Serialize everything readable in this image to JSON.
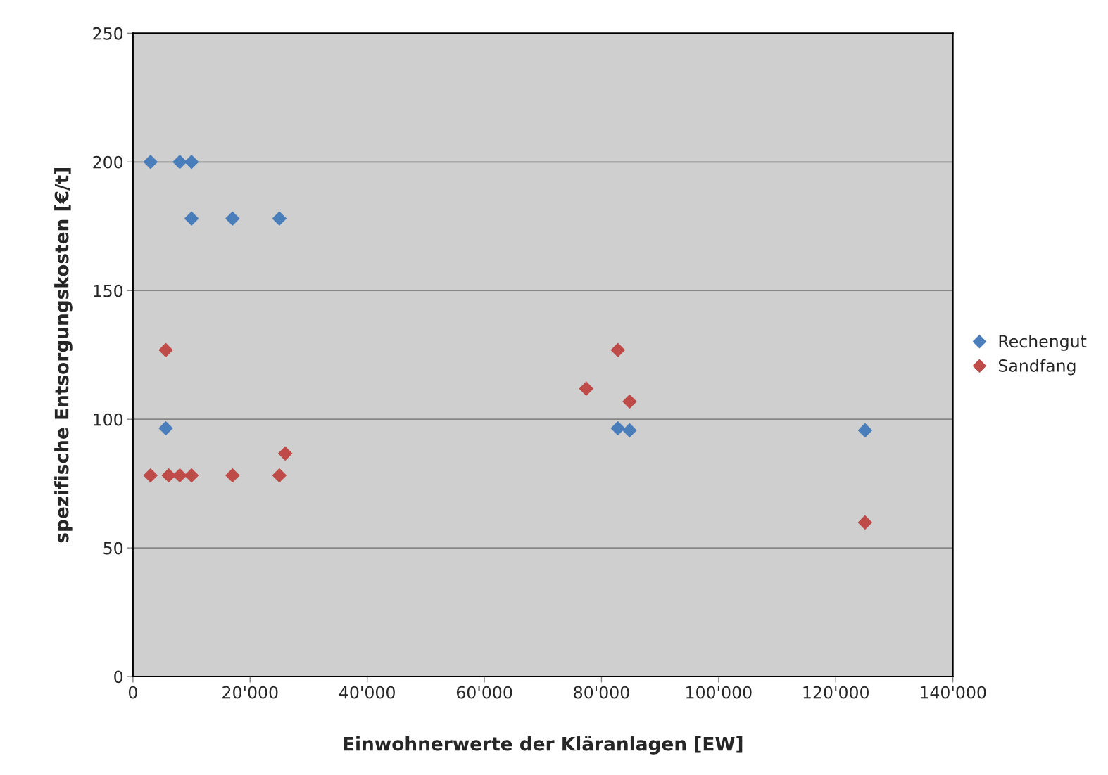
{
  "chart_data": {
    "type": "scatter",
    "xlabel": "Einwohnerwerte der Kläranlagen [EW]",
    "ylabel": "spezifische Entsorgungskosten [€/t]",
    "xlim": [
      0,
      140000
    ],
    "xticks": [
      0,
      {
        "value": 20000,
        "label": "20'000"
      },
      {
        "value": 40000,
        "label": "40'000"
      },
      {
        "value": 60000,
        "label": "60'000"
      },
      {
        "value": 80000,
        "label": "80'000"
      },
      {
        "value": 100000,
        "label": "100'000"
      },
      {
        "value": 120000,
        "label": "120'000"
      },
      {
        "value": 140000,
        "label": "140'000"
      }
    ],
    "ylim": [
      0,
      250
    ],
    "yticks": [
      0,
      50,
      100,
      150,
      200,
      250
    ],
    "grid": "y",
    "legend": "right",
    "marker": "diamond",
    "series": [
      {
        "name": "Rechengut",
        "color": "#4a7ebb",
        "x": [
          3000,
          8000,
          10000,
          10000,
          17000,
          25000,
          5600,
          82800,
          84800,
          125000
        ],
        "values": [
          200,
          200,
          200,
          178,
          178,
          178,
          96.5,
          96.5,
          95.7,
          95.7
        ]
      },
      {
        "name": "Sandfang",
        "color": "#be4b48",
        "x": [
          3000,
          6100,
          8000,
          10000,
          17000,
          25000,
          26000,
          5600,
          77400,
          82800,
          84800,
          125000
        ],
        "values": [
          78.2,
          78.2,
          78.2,
          78.2,
          78.2,
          78.2,
          86.7,
          126.9,
          111.9,
          126.9,
          106.9,
          59.9
        ]
      }
    ]
  }
}
